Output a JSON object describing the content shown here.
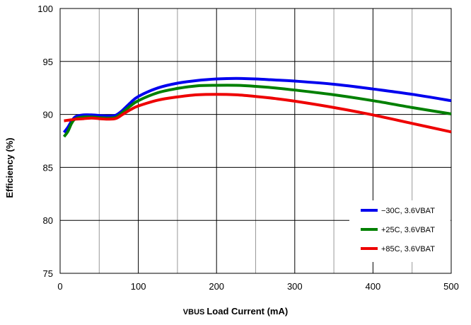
{
  "chart_data": {
    "type": "line",
    "xlabel_prefix": "VBUS",
    "xlabel_rest": "Load Current (mA)",
    "ylabel": "Efficiency (%)",
    "xlim": [
      0,
      500
    ],
    "ylim": [
      75,
      100
    ],
    "x_ticks": [
      0,
      100,
      200,
      300,
      400,
      500
    ],
    "y_ticks": [
      75,
      80,
      85,
      90,
      95,
      100
    ],
    "x_minor_grid": [
      50,
      150,
      250,
      350,
      450
    ],
    "grid": true,
    "legend_position": "bottom-right",
    "series": [
      {
        "name": "−30C, 3.6VBAT",
        "color": "#0000ee",
        "x": [
          5,
          10,
          15,
          20,
          30,
          40,
          50,
          60,
          70,
          75,
          80,
          90,
          100,
          125,
          150,
          175,
          200,
          225,
          250,
          275,
          300,
          350,
          400,
          450,
          500
        ],
        "y": [
          88.3,
          88.8,
          89.4,
          89.8,
          89.95,
          89.95,
          89.9,
          89.85,
          89.9,
          90.1,
          90.4,
          91.1,
          91.7,
          92.5,
          92.95,
          93.2,
          93.35,
          93.4,
          93.35,
          93.25,
          93.15,
          92.85,
          92.4,
          91.9,
          91.3
        ]
      },
      {
        "name": "+25C, 3.6VBAT",
        "color": "#008000",
        "x": [
          5,
          10,
          15,
          20,
          30,
          40,
          50,
          60,
          70,
          75,
          80,
          90,
          100,
          125,
          150,
          175,
          200,
          225,
          250,
          275,
          300,
          350,
          400,
          450,
          500
        ],
        "y": [
          87.9,
          88.4,
          89.2,
          89.6,
          89.75,
          89.75,
          89.7,
          89.65,
          89.7,
          89.9,
          90.2,
          90.8,
          91.3,
          92.05,
          92.45,
          92.7,
          92.75,
          92.75,
          92.65,
          92.5,
          92.3,
          91.85,
          91.3,
          90.65,
          90.05
        ]
      },
      {
        "name": "+85C, 3.6VBAT",
        "color": "#ee0000",
        "x": [
          5,
          10,
          15,
          20,
          30,
          40,
          50,
          60,
          70,
          75,
          80,
          90,
          100,
          125,
          150,
          175,
          200,
          225,
          250,
          275,
          300,
          350,
          400,
          450,
          500
        ],
        "y": [
          89.4,
          89.45,
          89.5,
          89.55,
          89.6,
          89.65,
          89.6,
          89.55,
          89.6,
          89.75,
          90.0,
          90.45,
          90.8,
          91.35,
          91.65,
          91.85,
          91.9,
          91.85,
          91.7,
          91.5,
          91.25,
          90.65,
          89.95,
          89.15,
          88.35
        ]
      }
    ]
  }
}
